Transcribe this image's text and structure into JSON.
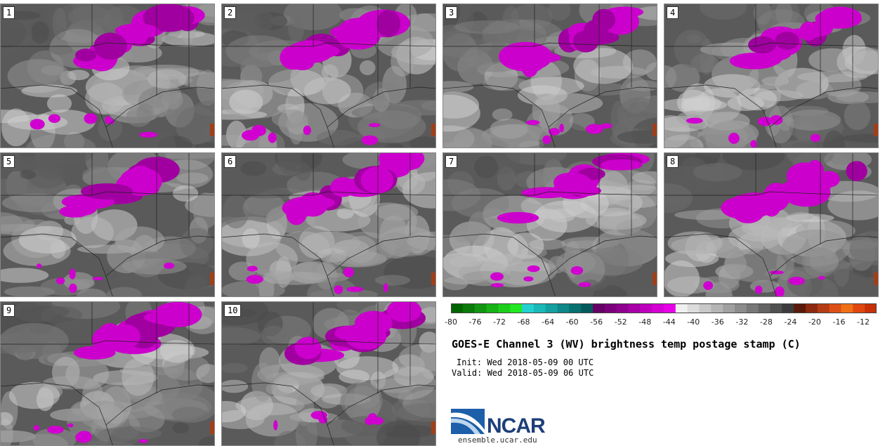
{
  "panels": [
    {
      "label": "1"
    },
    {
      "label": "2"
    },
    {
      "label": "3"
    },
    {
      "label": "4"
    },
    {
      "label": "5"
    },
    {
      "label": "6"
    },
    {
      "label": "7"
    },
    {
      "label": "8"
    },
    {
      "label": "9"
    },
    {
      "label": "10"
    }
  ],
  "colorbar": {
    "ticks": [
      "-80",
      "-76",
      "-72",
      "-68",
      "-64",
      "-60",
      "-56",
      "-52",
      "-48",
      "-44",
      "-40",
      "-36",
      "-32",
      "-28",
      "-24",
      "-20",
      "-16",
      "-12"
    ],
    "colors": [
      "#006400",
      "#0a7a0a",
      "#129612",
      "#16b216",
      "#1cce1c",
      "#22e822",
      "#22d0d0",
      "#1ab8b8",
      "#14a0a0",
      "#0e8888",
      "#087070",
      "#045a5a",
      "#660066",
      "#7a007a",
      "#8e008e",
      "#a600a6",
      "#be00be",
      "#d400d4",
      "#e800e8",
      "#f0f0f0",
      "#dcdcdc",
      "#c8c8c8",
      "#b4b4b4",
      "#a0a0a0",
      "#8c8c8c",
      "#787878",
      "#646464",
      "#505050",
      "#3c3c3c",
      "#5a1a0a",
      "#8c2a10",
      "#b43c14",
      "#dc5018",
      "#f07018",
      "#e04810",
      "#c83008"
    ]
  },
  "title": "GOES-E Channel 3 (WV) brightness temp postage stamp (C)",
  "init": "Init: Wed 2018-05-09 00 UTC",
  "valid": "Valid: Wed 2018-05-09 06 UTC",
  "logo": {
    "text": "NCAR",
    "url": "ensemble.ucar.edu"
  }
}
